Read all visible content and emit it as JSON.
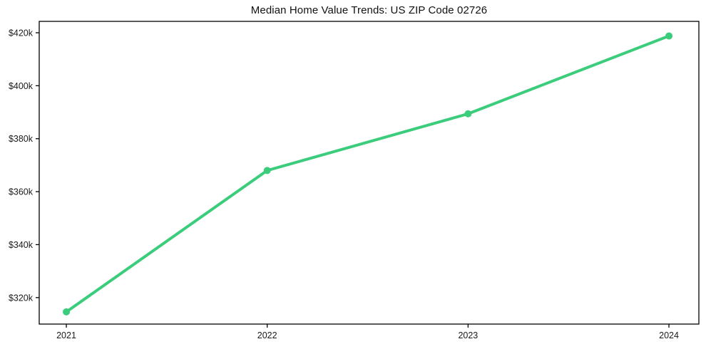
{
  "window": {
    "background_color": "#ffffff"
  },
  "chart_data": {
    "type": "line",
    "title": "Median Home Value Trends: US ZIP Code 02726",
    "xlabel": "",
    "ylabel": "",
    "x": [
      2021,
      2022,
      2023,
      2024
    ],
    "values": [
      314600,
      368000,
      389400,
      418800
    ],
    "x_ticks": [
      {
        "value": 2021,
        "label": "2021"
      },
      {
        "value": 2022,
        "label": "2022"
      },
      {
        "value": 2023,
        "label": "2023"
      },
      {
        "value": 2024,
        "label": "2024"
      }
    ],
    "y_ticks": [
      {
        "value": 420000,
        "label": "$420k"
      },
      {
        "value": 400000,
        "label": "$400k"
      },
      {
        "value": 380000,
        "label": "$380k"
      },
      {
        "value": 360000,
        "label": "$360k"
      },
      {
        "value": 340000,
        "label": "$340k"
      },
      {
        "value": 320000,
        "label": "$320k"
      }
    ],
    "xlim": [
      2020.865,
      2024.149
    ],
    "ylim": [
      310000,
      424300
    ],
    "grid": false,
    "legend": "none",
    "marker": "circle",
    "line_color": "#3bcc7c",
    "axis_color": "#000000",
    "tick_text_color": "#1a1a1a"
  }
}
